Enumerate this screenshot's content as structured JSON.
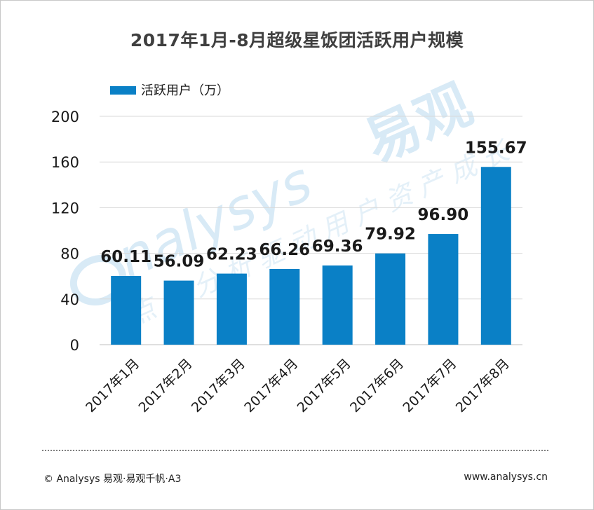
{
  "colors": {
    "bar": "#0a80c6",
    "grid": "#d9d9d9",
    "text": "#1a1a1a",
    "title": "#3f3f3f",
    "watermark": "#b9d9ef"
  },
  "chart_data": {
    "type": "bar",
    "title": "2017年1月-8月超级星饭团活跃用户规模",
    "series": [
      {
        "name": "活跃用户（万）",
        "values": [
          60.11,
          56.09,
          62.23,
          66.26,
          69.36,
          79.92,
          96.9,
          155.67
        ]
      }
    ],
    "data_labels": [
      "60.11",
      "56.09",
      "62.23",
      "66.26",
      "69.36",
      "79.92",
      "96.90",
      "155.67"
    ],
    "categories": [
      "2017年1月",
      "2017年2月",
      "2017年3月",
      "2017年4月",
      "2017年5月",
      "2017年6月",
      "2017年7月",
      "2017年8月"
    ],
    "ylim": [
      0,
      200
    ],
    "yticks": [
      0,
      40,
      80,
      120,
      160,
      200
    ],
    "grid": true,
    "legend": "top-left",
    "xlabel": "",
    "ylabel": ""
  },
  "footer": {
    "copyright": "© Analysys 易观·易观千帆·A3",
    "url": "www.analysys.cn"
  }
}
